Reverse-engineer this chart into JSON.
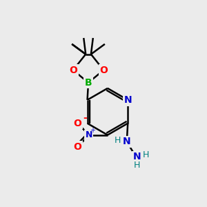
{
  "bg_color": "#ebebeb",
  "atom_colors": {
    "C": "#000000",
    "N": "#0000cd",
    "O": "#ff0000",
    "B": "#00aa00",
    "H": "#008080"
  },
  "bond_color": "#000000",
  "bond_width": 1.8,
  "figsize": [
    3.0,
    3.0
  ],
  "dpi": 100
}
